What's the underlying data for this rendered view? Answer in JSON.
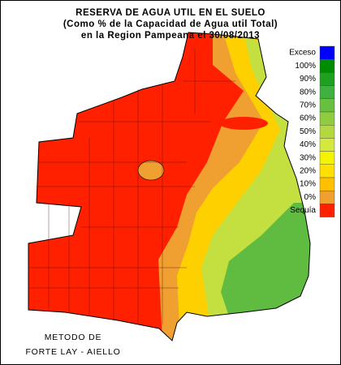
{
  "header": {
    "title": "RESERVA DE AGUA UTIL EN EL SUELO",
    "subtitle": "(Como % de la Capacidad de Agua util Total)",
    "region": "en la Region Pampeana el 30/08/2013"
  },
  "legend": {
    "items": [
      {
        "label": "Exceso",
        "color": "#0000ff"
      },
      {
        "label": "100%",
        "color": "#008c00"
      },
      {
        "label": "90%",
        "color": "#20a020"
      },
      {
        "label": "80%",
        "color": "#40b040"
      },
      {
        "label": "70%",
        "color": "#68c040"
      },
      {
        "label": "60%",
        "color": "#90cc40"
      },
      {
        "label": "50%",
        "color": "#b4d840"
      },
      {
        "label": "40%",
        "color": "#d4e840"
      },
      {
        "label": "30%",
        "color": "#f4f400"
      },
      {
        "label": "20%",
        "color": "#ffe000"
      },
      {
        "label": "10%",
        "color": "#ffc000"
      },
      {
        "label": "0%",
        "color": "#f0a030"
      },
      {
        "label": "Sequía",
        "color": "#ff2000"
      }
    ]
  },
  "footer": {
    "method": [
      "METODO DE",
      "FORTE LAY - AIELLO"
    ]
  }
}
